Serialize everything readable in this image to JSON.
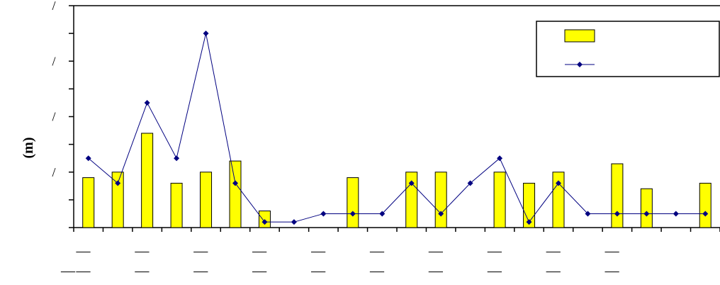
{
  "chart_data": {
    "type": "bar",
    "title": "",
    "xlabel": "",
    "ylabel": "(m)",
    "y_tick_labels": [
      "/",
      "/",
      "/",
      "/"
    ],
    "x_tick_labels_row1": [
      "—",
      "—",
      "—",
      "—",
      "—",
      "—",
      "—",
      "—",
      "—",
      "—"
    ],
    "x_tick_labels_row2": [
      "—",
      "—",
      "—",
      "—",
      "—",
      "—",
      "—",
      "—",
      "—",
      "—",
      "—"
    ],
    "ylim": [
      0,
      8
    ],
    "num_slots": 22,
    "grid": false,
    "legend_position": "top-right",
    "series": [
      {
        "type": "bar",
        "color": "#ffff00",
        "values": [
          1.8,
          2.0,
          3.4,
          1.6,
          2.0,
          2.4,
          0.6,
          null,
          null,
          1.8,
          null,
          2.0,
          2.0,
          null,
          2.0,
          1.6,
          2.0,
          null,
          2.3,
          1.4,
          null,
          1.6
        ]
      },
      {
        "type": "line",
        "color": "#000080",
        "values": [
          2.5,
          1.6,
          4.5,
          2.5,
          7.0,
          1.6,
          0.2,
          0.2,
          0.5,
          0.5,
          0.5,
          1.6,
          0.5,
          1.6,
          2.5,
          0.2,
          1.6,
          0.5,
          0.5,
          0.5,
          0.5,
          0.5
        ]
      }
    ]
  }
}
